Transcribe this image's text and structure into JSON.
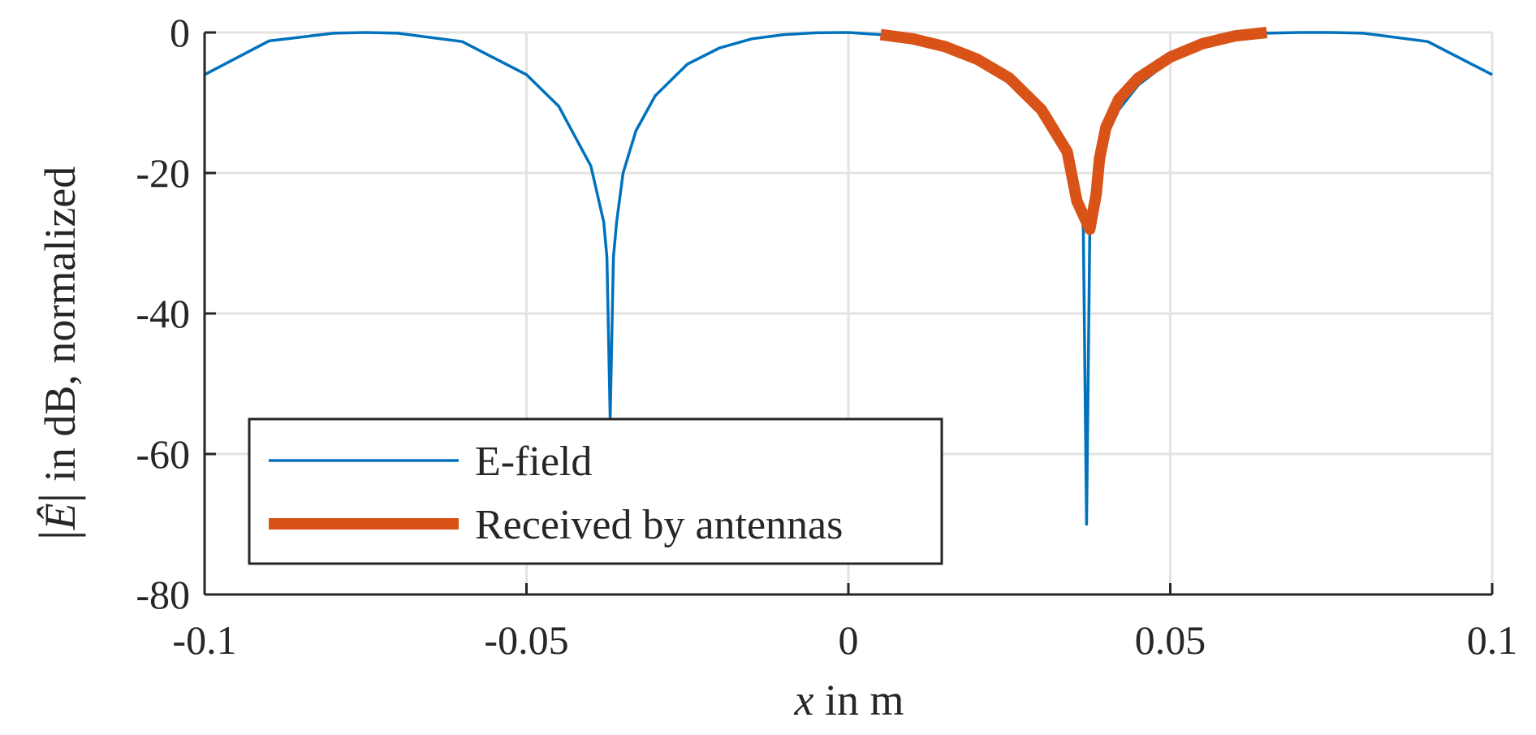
{
  "chart_data": {
    "type": "line",
    "title": "",
    "xlabel": {
      "var": "x",
      "text": " in m"
    },
    "ylabel": {
      "var": "Ê",
      "text": " in dB, normalized"
    },
    "xlim": [
      -0.1,
      0.1
    ],
    "ylim": [
      -80,
      0
    ],
    "xticks": [
      -0.1,
      -0.05,
      0,
      0.05,
      0.1
    ],
    "xtick_labels": [
      "-0.1",
      "-0.05",
      "0",
      "0.05",
      "0.1"
    ],
    "yticks": [
      0,
      -20,
      -40,
      -60,
      -80
    ],
    "ytick_labels": [
      "0",
      "-20",
      "-40",
      "-60",
      "-80"
    ],
    "grid": true,
    "legend_position": "bottom-left",
    "series": [
      {
        "name": "E-field",
        "color": "#0072BD",
        "x": [
          -0.1,
          -0.09,
          -0.08,
          -0.075,
          -0.07,
          -0.06,
          -0.05,
          -0.045,
          -0.04,
          -0.038,
          -0.0375,
          -0.037,
          -0.0365,
          -0.036,
          -0.035,
          -0.033,
          -0.03,
          -0.025,
          -0.02,
          -0.015,
          -0.01,
          -0.005,
          0,
          0.005,
          0.01,
          0.015,
          0.02,
          0.025,
          0.03,
          0.033,
          0.035,
          0.036,
          0.0365,
          0.037,
          0.0375,
          0.038,
          0.039,
          0.04,
          0.042,
          0.045,
          0.05,
          0.055,
          0.06,
          0.065,
          0.07,
          0.075,
          0.08,
          0.09,
          0.1
        ],
        "y": [
          -6,
          -1.2,
          -0.1,
          0,
          -0.1,
          -1.3,
          -6,
          -10.5,
          -19,
          -27,
          -32,
          -55,
          -32,
          -27,
          -20,
          -14,
          -9,
          -4.5,
          -2.2,
          -0.9,
          -0.3,
          -0.05,
          0,
          -0.3,
          -0.9,
          -2,
          -3.8,
          -6.5,
          -11,
          -15,
          -20,
          -24,
          -28,
          -70,
          -28,
          -24,
          -19,
          -15,
          -11,
          -7.5,
          -4,
          -1.8,
          -0.6,
          -0.1,
          0,
          0,
          -0.1,
          -1.3,
          -6
        ]
      },
      {
        "name": "Received by antennas",
        "color": "#D95319",
        "x": [
          0.005,
          0.01,
          0.015,
          0.02,
          0.025,
          0.03,
          0.034,
          0.0355,
          0.0375,
          0.0385,
          0.039,
          0.04,
          0.042,
          0.045,
          0.05,
          0.055,
          0.06,
          0.065
        ],
        "y": [
          -0.3,
          -0.9,
          -2,
          -3.8,
          -6.5,
          -11,
          -17,
          -24,
          -28,
          -23,
          -18,
          -13.5,
          -9.5,
          -6.5,
          -3.5,
          -1.6,
          -0.5,
          0
        ]
      }
    ]
  }
}
